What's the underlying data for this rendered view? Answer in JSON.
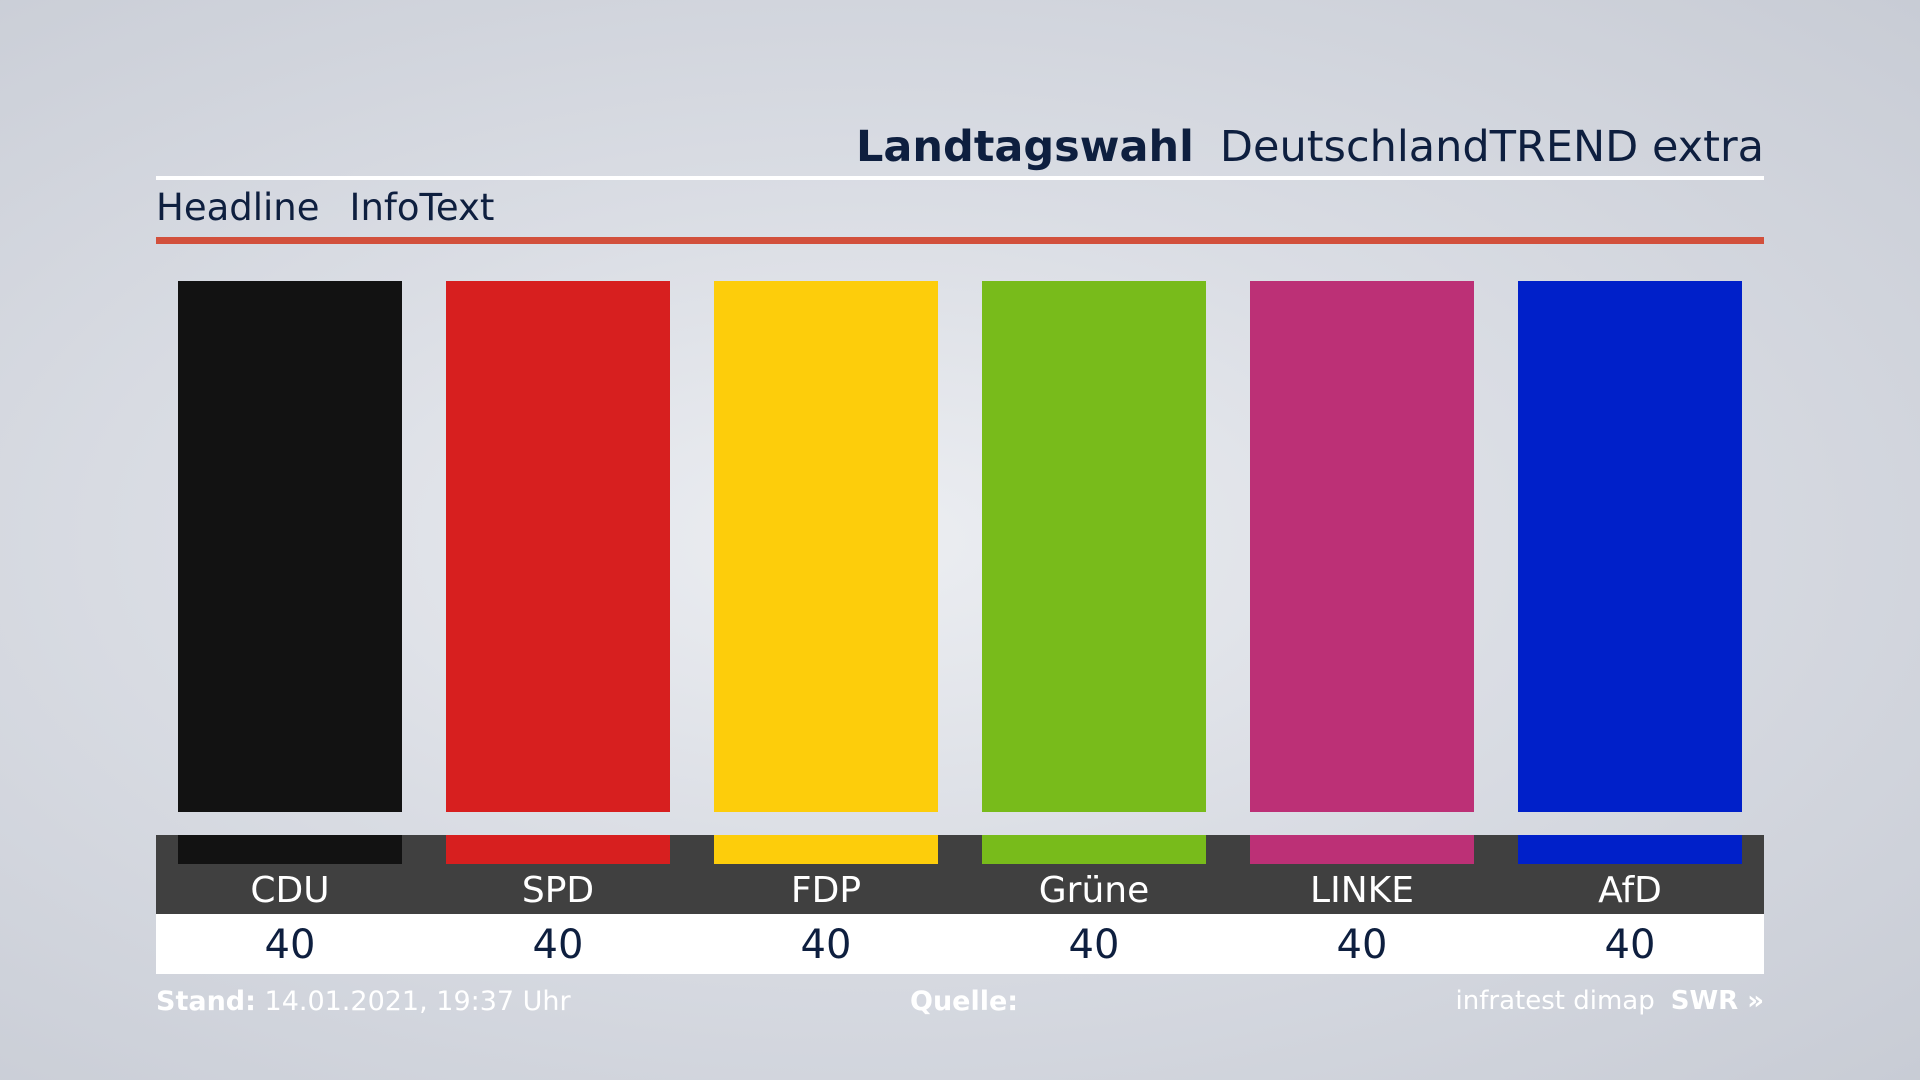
{
  "header": {
    "title_bold": "Landtagswahl",
    "title_light": "DeutschlandTREND extra"
  },
  "subheader": {
    "headline": "Headline",
    "infotext": "InfoText"
  },
  "chart_data": {
    "type": "bar",
    "categories": [
      "CDU",
      "SPD",
      "FDP",
      "Grüne",
      "LINKE",
      "AfD"
    ],
    "values": [
      40,
      40,
      40,
      40,
      40,
      40
    ],
    "colors": [
      "#121212",
      "#d71f1f",
      "#fdcd0b",
      "#78bb1b",
      "#bc3076",
      "#0020c9"
    ],
    "ylim": [
      0,
      40
    ],
    "grid": false,
    "legend": "none"
  },
  "footer": {
    "stand_label": "Stand:",
    "stand_value": "14.01.2021, 19:37 Uhr",
    "quelle_label": "Quelle:",
    "source": "infratest dimap",
    "brand": "SWR »"
  },
  "colors": {
    "navy": "#0e1f3f",
    "accent_red": "#d2503c",
    "label_band": "#404040"
  }
}
